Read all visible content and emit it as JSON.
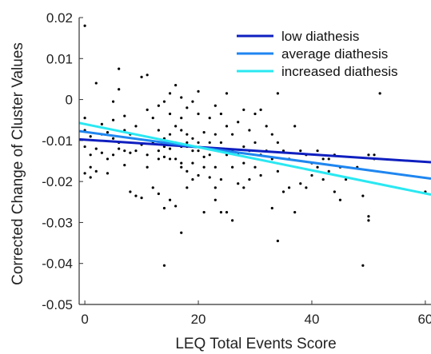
{
  "chart_data": {
    "type": "scatter",
    "title": "",
    "xlabel": "LEQ Total Events Score",
    "ylabel": "Corrected Change of Cluster Values",
    "xlim": [
      -1,
      61
    ],
    "ylim": [
      -0.05,
      0.02
    ],
    "xticks": [
      0,
      20,
      40,
      60
    ],
    "xtick_labels": [
      "0",
      "20",
      "40",
      "60"
    ],
    "yticks": [
      0.02,
      0.01,
      0,
      -0.01,
      -0.02,
      -0.03,
      -0.04,
      -0.05
    ],
    "ytick_labels": [
      "0.02",
      "0.01",
      "0",
      "-0.01",
      "-0.02",
      "-0.03",
      "-0.04",
      "-0.05"
    ],
    "grid": false,
    "legend_position": "top-right",
    "series": [
      {
        "name": "low diathesis",
        "kind": "line",
        "color": "#0f1fbf",
        "x": [
          -1,
          61
        ],
        "y": [
          -0.0097,
          -0.0153
        ]
      },
      {
        "name": "average diathesis",
        "kind": "line",
        "color": "#1f86f0",
        "x": [
          -1,
          61
        ],
        "y": [
          -0.0077,
          -0.0193
        ]
      },
      {
        "name": "increased diathesis",
        "kind": "line",
        "color": "#2ae8f2",
        "x": [
          -1,
          61
        ],
        "y": [
          -0.0057,
          -0.0232
        ]
      }
    ],
    "points": {
      "color": "#000000",
      "x": [
        0,
        0,
        0,
        0,
        0,
        1,
        1,
        1,
        1,
        2,
        2,
        2,
        3,
        3,
        3,
        4,
        4,
        4,
        5,
        5,
        5,
        5,
        6,
        6,
        6,
        6,
        7,
        7,
        7,
        7,
        8,
        8,
        8,
        9,
        9,
        9,
        10,
        10,
        10,
        11,
        11,
        11,
        11,
        12,
        12,
        12,
        13,
        13,
        13,
        13,
        13,
        14,
        14,
        14,
        14,
        14,
        14,
        15,
        15,
        15,
        15,
        15,
        15,
        16,
        16,
        16,
        16,
        16,
        17,
        17,
        17,
        17,
        17,
        17,
        17,
        18,
        18,
        18,
        18,
        18,
        18,
        19,
        19,
        19,
        19,
        19,
        20,
        20,
        20,
        20,
        20,
        21,
        21,
        21,
        21,
        22,
        22,
        22,
        22,
        23,
        23,
        23,
        23,
        23,
        24,
        24,
        24,
        24,
        25,
        25,
        25,
        25,
        26,
        26,
        26,
        26,
        27,
        27,
        27,
        28,
        28,
        28,
        28,
        29,
        29,
        29,
        30,
        30,
        30,
        31,
        31,
        31,
        32,
        32,
        33,
        33,
        33,
        34,
        34,
        34,
        34,
        35,
        35,
        36,
        36,
        37,
        37,
        38,
        38,
        39,
        39,
        40,
        40,
        41,
        41,
        42,
        42,
        43,
        43,
        44,
        44,
        45,
        45,
        46,
        48,
        49,
        49,
        50,
        50,
        50,
        51,
        51,
        52,
        60
      ],
      "y": [
        0.018,
        -0.0045,
        -0.0075,
        -0.0115,
        -0.018,
        -0.009,
        -0.0135,
        -0.019,
        -0.0165,
        0.004,
        -0.012,
        -0.0175,
        -0.0085,
        -0.013,
        -0.006,
        -0.008,
        -0.0145,
        -0.018,
        -0.0005,
        -0.0095,
        -0.005,
        -0.0135,
        0.0075,
        0.0025,
        -0.0105,
        -0.012,
        -0.004,
        -0.0075,
        -0.016,
        -0.0125,
        -0.0225,
        -0.0085,
        -0.013,
        -0.0125,
        -0.0235,
        -0.0065,
        0.0055,
        -0.011,
        -0.024,
        -0.0025,
        -0.0135,
        -0.0165,
        0.006,
        -0.0045,
        -0.0105,
        -0.0215,
        -0.0015,
        -0.0075,
        -0.0125,
        -0.023,
        -0.0145,
        -0.0005,
        -0.0095,
        -0.0115,
        -0.0265,
        -0.0405,
        -0.014,
        0.0015,
        -0.0035,
        -0.0085,
        -0.012,
        -0.0245,
        -0.0145,
        0.0035,
        -0.0065,
        -0.0105,
        -0.0145,
        -0.026,
        0.0005,
        -0.0045,
        -0.0075,
        -0.0115,
        -0.0165,
        -0.0325,
        -0.0155,
        -0.002,
        -0.0085,
        -0.0115,
        -0.0215,
        -0.0175,
        -0.0105,
        -0.0005,
        -0.0095,
        -0.0125,
        -0.0195,
        -0.0155,
        -0.0035,
        -0.0105,
        -0.0125,
        -0.0185,
        0.002,
        -0.008,
        -0.014,
        -0.0165,
        -0.0275,
        -0.0045,
        -0.0105,
        -0.0135,
        -0.019,
        -0.0015,
        -0.0085,
        -0.0165,
        -0.0245,
        -0.0215,
        -0.0035,
        -0.0105,
        -0.0195,
        -0.0275,
        0.0015,
        -0.0065,
        -0.0135,
        -0.0275,
        -0.0085,
        -0.0125,
        -0.0165,
        -0.0295,
        -0.0055,
        -0.0135,
        -0.0205,
        -0.0025,
        -0.0115,
        -0.0155,
        -0.0215,
        -0.0075,
        -0.0125,
        -0.0195,
        -0.0035,
        -0.0105,
        -0.0165,
        -0.0025,
        -0.0135,
        -0.0185,
        -0.0065,
        -0.0125,
        -0.0085,
        -0.0145,
        -0.0265,
        0.0015,
        -0.0105,
        -0.0175,
        -0.0345,
        -0.0125,
        -0.0225,
        -0.0145,
        -0.0215,
        -0.0065,
        -0.0275,
        -0.0125,
        -0.0205,
        -0.0135,
        -0.0215,
        -0.0155,
        -0.0185,
        -0.0125,
        -0.0165,
        -0.0145,
        -0.0195,
        -0.0145,
        -0.0175,
        -0.0225,
        -0.0135,
        -0.0245,
        -0.0165,
        -0.0195,
        -0.0165,
        -0.0405,
        -0.0235,
        -0.0135,
        -0.0285,
        -0.0295,
        -0.0135,
        -0.0145,
        0.0015,
        -0.0225
      ]
    }
  }
}
